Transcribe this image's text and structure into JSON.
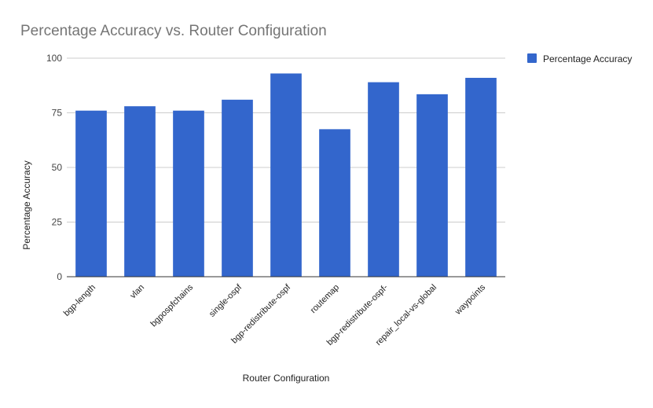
{
  "chart_data": {
    "type": "bar",
    "title": "Percentage Accuracy vs. Router Configuration",
    "xlabel": "Router Configuration",
    "ylabel": "Percentage Accuracy",
    "ylim": [
      0,
      100
    ],
    "yticks": [
      0,
      25,
      50,
      75,
      100
    ],
    "grid": true,
    "legend_position": "top-right",
    "bar_color": "#3366cc",
    "categories": [
      "bgp-length",
      "vlan",
      "bgpospfchains",
      "single-ospf",
      "bgp-redistribute-ospf",
      "routemap",
      "bgp-redistribute-ospf-",
      "repair_local-vs-global",
      "waypoints"
    ],
    "series": [
      {
        "name": "Percentage Accuracy",
        "values": [
          76,
          78,
          76,
          81,
          93,
          67.5,
          89,
          83.5,
          91
        ]
      }
    ]
  }
}
